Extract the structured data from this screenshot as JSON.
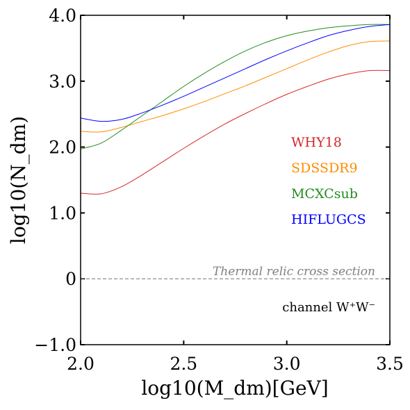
{
  "chart_data": {
    "type": "line",
    "xlabel": "log10(M_dm)[GeV]",
    "ylabel": "log10(N_dm)",
    "xlim": [
      2.0,
      3.5
    ],
    "ylim": [
      -1.0,
      4.0
    ],
    "x_ticks": [
      {
        "value": 2.0,
        "label": "2.0"
      },
      {
        "value": 2.5,
        "label": "2.5"
      },
      {
        "value": 3.0,
        "label": "3.0"
      },
      {
        "value": 3.5,
        "label": "3.5"
      }
    ],
    "y_ticks": [
      {
        "value": -1.0,
        "label": "−1.0"
      },
      {
        "value": 0.0,
        "label": "0"
      },
      {
        "value": 1.0,
        "label": "1.0"
      },
      {
        "value": 2.0,
        "label": "2.0"
      },
      {
        "value": 3.0,
        "label": "3.0"
      },
      {
        "value": 4.0,
        "label": "4.0"
      }
    ],
    "grid": false,
    "legend_placement": "center-right",
    "series": [
      {
        "name": "WHY18",
        "color": "#d62728",
        "x": [
          2.0,
          2.1,
          2.2,
          2.3,
          2.4,
          2.5,
          2.6,
          2.7,
          2.8,
          2.9,
          3.0,
          3.1,
          3.2,
          3.3,
          3.4,
          3.5
        ],
        "y": [
          1.3,
          1.29,
          1.4,
          1.58,
          1.78,
          1.98,
          2.17,
          2.35,
          2.51,
          2.66,
          2.8,
          2.92,
          3.03,
          3.11,
          3.16,
          3.16
        ]
      },
      {
        "name": "SDSSDR9",
        "color": "#ff8c00",
        "x": [
          2.0,
          2.1,
          2.2,
          2.3,
          2.4,
          2.5,
          2.6,
          2.7,
          2.8,
          2.9,
          3.0,
          3.1,
          3.2,
          3.3,
          3.4,
          3.5
        ],
        "y": [
          2.24,
          2.23,
          2.3,
          2.39,
          2.48,
          2.58,
          2.69,
          2.81,
          2.93,
          3.06,
          3.19,
          3.32,
          3.44,
          3.54,
          3.6,
          3.61
        ]
      },
      {
        "name": "MCXCsub",
        "color": "#228b22",
        "x": [
          2.0,
          2.1,
          2.2,
          2.3,
          2.4,
          2.5,
          2.6,
          2.7,
          2.8,
          2.9,
          3.0,
          3.1,
          3.2,
          3.3,
          3.4,
          3.5
        ],
        "y": [
          1.97,
          2.06,
          2.26,
          2.48,
          2.7,
          2.92,
          3.12,
          3.3,
          3.46,
          3.59,
          3.69,
          3.76,
          3.81,
          3.84,
          3.86,
          3.86
        ]
      },
      {
        "name": "HIFLUGCS",
        "color": "#0000ff",
        "x": [
          2.0,
          2.1,
          2.2,
          2.3,
          2.4,
          2.5,
          2.6,
          2.7,
          2.8,
          2.9,
          3.0,
          3.1,
          3.2,
          3.3,
          3.4,
          3.5
        ],
        "y": [
          2.44,
          2.39,
          2.42,
          2.52,
          2.64,
          2.77,
          2.91,
          3.05,
          3.19,
          3.33,
          3.46,
          3.58,
          3.69,
          3.77,
          3.83,
          3.86
        ]
      }
    ],
    "reference_line": {
      "y": 0.0,
      "label": "Thermal relic cross section",
      "color": "#808080",
      "style": "dashed"
    },
    "annotations": [
      {
        "text": "channel W⁺W⁻"
      }
    ]
  }
}
